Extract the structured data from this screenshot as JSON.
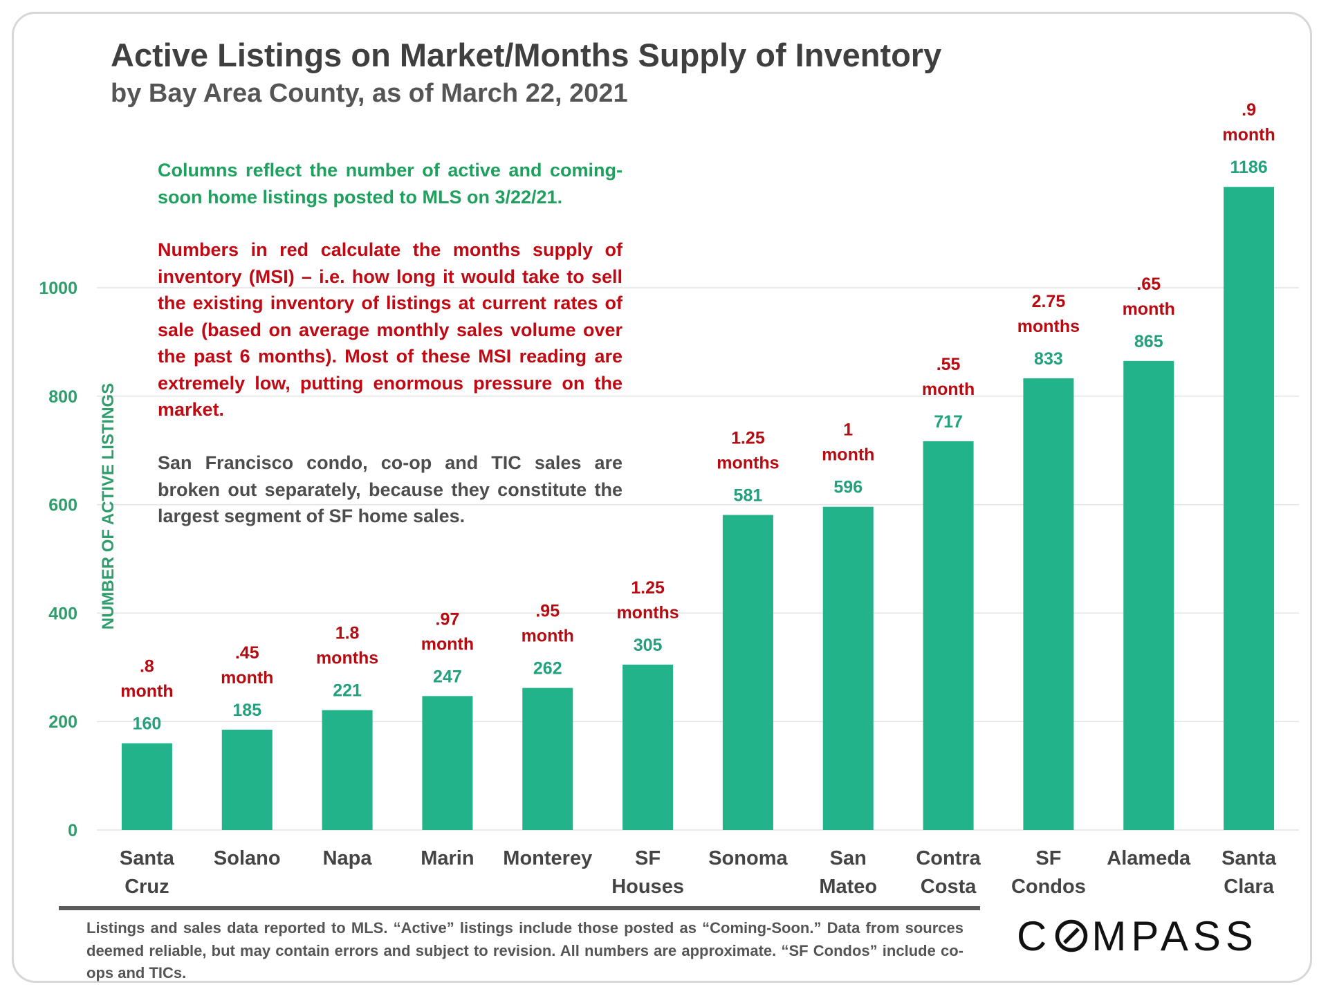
{
  "colors": {
    "bar": "#23b38b",
    "value_label": "#23a07c",
    "msi_label": "#b70b12",
    "axis_text": "#2f9e6c",
    "grid": "#e2e2e2",
    "category_text": "#444444"
  },
  "header": {
    "title": "Active Listings on Market/Months Supply of Inventory",
    "subtitle": "by Bay Area County, as of March 22, 2021"
  },
  "notes": {
    "green": "Columns reflect the number of active and coming-soon home listings posted to MLS on 3/22/21.",
    "red": "Numbers in red calculate the months supply of inventory (MSI) – i.e. how long it would take to sell the existing inventory of listings at current rates of sale (based on average monthly sales volume over the past 6 months). Most of these MSI reading are extremely low, putting enormous pressure on the market.",
    "gray": "San Francisco condo, co-op and TIC sales are broken out separately, because they constitute the largest segment of SF home sales."
  },
  "footnote": "Listings and sales data reported to MLS. “Active” listings include those posted as “Coming-Soon.” Data from sources deemed reliable, but may contain errors and subject to revision. All numbers are approximate. “SF Condos” include co-ops and TICs.",
  "logo": {
    "before": "C",
    "after": "MPASS"
  },
  "chart_data": {
    "type": "bar",
    "title": "Active Listings on Market/Months Supply of Inventory",
    "subtitle": "by Bay Area County, as of March 22, 2021",
    "xlabel": "",
    "ylabel": "NUMBER OF ACTIVE LISTINGS",
    "ylim": [
      0,
      1186
    ],
    "yticks": [
      0,
      200,
      400,
      600,
      800,
      1000
    ],
    "grid": true,
    "categories": [
      [
        "Santa",
        "Cruz"
      ],
      [
        "Solano"
      ],
      [
        "Napa"
      ],
      [
        "Marin"
      ],
      [
        "Monterey"
      ],
      [
        "SF",
        "Houses"
      ],
      [
        "Sonoma"
      ],
      [
        "San",
        "Mateo"
      ],
      [
        "Contra",
        "Costa"
      ],
      [
        "SF",
        "Condos"
      ],
      [
        "Alameda"
      ],
      [
        "Santa",
        "Clara"
      ]
    ],
    "values": [
      160,
      185,
      221,
      247,
      262,
      305,
      581,
      596,
      717,
      833,
      865,
      1186
    ],
    "annotations": [
      [
        ".8",
        "month"
      ],
      [
        ".45",
        "month"
      ],
      [
        "1.8",
        "months"
      ],
      [
        ".97",
        "month"
      ],
      [
        ".95",
        "month"
      ],
      [
        "1.25",
        "months"
      ],
      [
        "1.25",
        "months"
      ],
      [
        "1",
        "month"
      ],
      [
        ".55",
        "month"
      ],
      [
        "2.75",
        "months"
      ],
      [
        ".65",
        "month"
      ],
      [
        ".9",
        "month"
      ]
    ]
  }
}
